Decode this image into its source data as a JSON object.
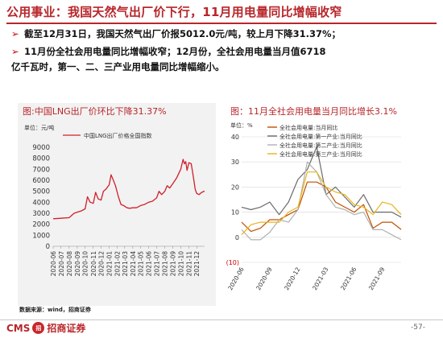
{
  "title": "公用事业：我国天然气出厂价下行，11月用电量同比增幅收窄",
  "bullets": [
    "截至12月31日，我国天然气出厂价报5012.0元/吨，较上月下降31.37%；",
    "11月份全社会用电量同比增幅收窄；12月份，全社会用电量当月值6718",
    "亿千瓦时，第一、二、三产业用电量同比增幅缩小。"
  ],
  "bullet_mark": "➢",
  "source": "数据来源：wind，招商证券",
  "footer": {
    "logo_left": "CMS",
    "logo_badge": "招",
    "logo_right": "招商证券",
    "page": "-57-"
  },
  "colors": {
    "accent": "#b8262a",
    "lng": "#d11f2a",
    "total": "#c05000",
    "primary": "#6a6a6a",
    "secondary": "#b0b0b0",
    "tertiary": "#e8b41a"
  },
  "chart_data": [
    {
      "type": "line",
      "title": "图:中国LNG出厂价环比下降31.37%",
      "unit": "单位：元/吨",
      "series": [
        {
          "name": "中国LNG出厂价格全国指数"
        }
      ],
      "ylim": [
        0,
        9000
      ],
      "yticks": [
        "0",
        "1000",
        "2000",
        "3000",
        "4000",
        "5000",
        "6000",
        "7000",
        "8000",
        "9000"
      ],
      "xticks": [
        "2020-06",
        "2020-07",
        "2020-08",
        "2020-09",
        "2020-10",
        "2020-11",
        "2020-12",
        "2021-01",
        "2021-02",
        "2021-03",
        "2021-04",
        "2021-05",
        "2021-06",
        "2021-07",
        "2021-08",
        "2021-09",
        "2021-10",
        "2021-11",
        "2021-12"
      ],
      "x_range": [
        "2020-06-01",
        "2021-12-31"
      ],
      "points": [
        [
          "2020-06-01",
          2500
        ],
        [
          "2020-07-01",
          2550
        ],
        [
          "2020-08-01",
          2600
        ],
        [
          "2020-08-20",
          3000
        ],
        [
          "2020-09-01",
          3100
        ],
        [
          "2020-09-15",
          3200
        ],
        [
          "2020-10-01",
          3400
        ],
        [
          "2020-10-10",
          4500
        ],
        [
          "2020-10-20",
          4000
        ],
        [
          "2020-11-01",
          3900
        ],
        [
          "2020-11-10",
          4900
        ],
        [
          "2020-11-20",
          4300
        ],
        [
          "2020-12-01",
          4200
        ],
        [
          "2020-12-10",
          5000
        ],
        [
          "2020-12-20",
          5200
        ],
        [
          "2021-01-01",
          5600
        ],
        [
          "2021-01-08",
          6500
        ],
        [
          "2021-01-15",
          6100
        ],
        [
          "2021-01-25",
          5500
        ],
        [
          "2021-02-05",
          4500
        ],
        [
          "2021-02-15",
          3800
        ],
        [
          "2021-02-25",
          3700
        ],
        [
          "2021-03-10",
          3500
        ],
        [
          "2021-03-20",
          3450
        ],
        [
          "2021-04-01",
          3500
        ],
        [
          "2021-04-15",
          3500
        ],
        [
          "2021-05-01",
          3700
        ],
        [
          "2021-05-15",
          3800
        ],
        [
          "2021-06-01",
          4000
        ],
        [
          "2021-06-15",
          4100
        ],
        [
          "2021-07-01",
          4400
        ],
        [
          "2021-07-10",
          5000
        ],
        [
          "2021-07-20",
          4700
        ],
        [
          "2021-08-01",
          5000
        ],
        [
          "2021-08-10",
          5500
        ],
        [
          "2021-08-20",
          5300
        ],
        [
          "2021-09-01",
          5700
        ],
        [
          "2021-09-15",
          6200
        ],
        [
          "2021-10-01",
          7000
        ],
        [
          "2021-10-10",
          7900
        ],
        [
          "2021-10-15",
          7500
        ],
        [
          "2021-10-20",
          7700
        ],
        [
          "2021-10-25",
          6900
        ],
        [
          "2021-11-01",
          7600
        ],
        [
          "2021-11-10",
          7500
        ],
        [
          "2021-11-15",
          6800
        ],
        [
          "2021-11-20",
          6000
        ],
        [
          "2021-11-25",
          5200
        ],
        [
          "2021-12-01",
          4800
        ],
        [
          "2021-12-10",
          4700
        ],
        [
          "2021-12-20",
          4900
        ],
        [
          "2021-12-31",
          5012
        ]
      ],
      "grid": false,
      "legend": "top-left"
    },
    {
      "type": "line",
      "title": "图：11月全社会用电量当月同比增长3.1%",
      "unit": "单位：%",
      "ylim": [
        -10,
        40
      ],
      "yticks": [
        "(10)",
        "0",
        "10",
        "20",
        "30",
        "40"
      ],
      "xticks": [
        "2020-06",
        "2020-09",
        "2020-12",
        "2021-03",
        "2021-06",
        "2021-09"
      ],
      "x": [
        "2020-06",
        "2020-07",
        "2020-08",
        "2020-09",
        "2020-10",
        "2020-11",
        "2020-12",
        "2021-01",
        "2021-02",
        "2021-03",
        "2021-04",
        "2021-05",
        "2021-06",
        "2021-07",
        "2021-08",
        "2021-09",
        "2021-10",
        "2021-11"
      ],
      "series": [
        {
          "name": "全社会用电量:当月同比",
          "color": "#c05000",
          "values": [
            6,
            2.3,
            3.6,
            7,
            7,
            9,
            11,
            22,
            22,
            20,
            14,
            12,
            10,
            13,
            3.6,
            6,
            6,
            3.1
          ]
        },
        {
          "name": "全社会用电量:第一产业:当月同比",
          "color": "#6a6a6a",
          "values": [
            12,
            11,
            12,
            14,
            9,
            14,
            23,
            27,
            36,
            17,
            20,
            16,
            12,
            17,
            10,
            10,
            10,
            8
          ]
        },
        {
          "name": "全社会用电量:第二产业:当月同比",
          "color": "#b0b0b0",
          "values": [
            3,
            -1,
            -1,
            2,
            7,
            6,
            11,
            30,
            26,
            17,
            12,
            11,
            9,
            10,
            3,
            3,
            1,
            -1
          ]
        },
        {
          "name": "全社会用电量:第三产业:当月同比",
          "color": "#e8b41a",
          "values": [
            1,
            5,
            6,
            6,
            6,
            10,
            12,
            26,
            26,
            20,
            18,
            17,
            13,
            12,
            9,
            14,
            13,
            9
          ]
        }
      ],
      "grid": true,
      "legend": "top-right"
    }
  ]
}
